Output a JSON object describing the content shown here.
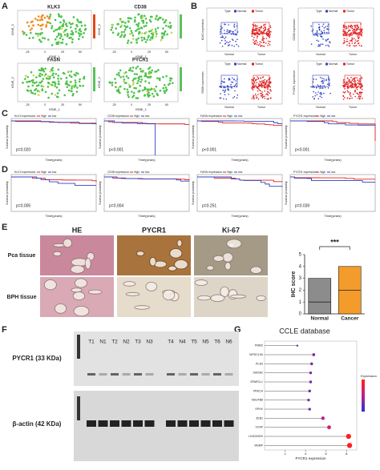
{
  "panels": {
    "letters": [
      "A",
      "B",
      "C",
      "D",
      "E",
      "F",
      "G"
    ],
    "a": {
      "genes": [
        "KLK3",
        "CD38",
        "FASN",
        "PYCR1"
      ],
      "x_label": "tSNE_1",
      "y_label": "tSNE_2",
      "ticks": [
        "-25",
        "0",
        "25",
        "50"
      ]
    },
    "b": {
      "legend_title": "Type",
      "groups": [
        "Normal",
        "Tumor"
      ],
      "y_labels": [
        "KLK3 expression",
        "CD38 expression",
        "FASN expression",
        "PYCR1 expression"
      ]
    },
    "c": {
      "legends": [
        "KLK3 expression",
        "CD38 expression",
        "FASN expression",
        "PYCR1 expression"
      ],
      "strata": [
        "High",
        "low"
      ],
      "x_label": "Time(years)",
      "y_label": "Survival probability",
      "p_values": [
        "p=0.020",
        "p<0.001",
        "p<0.001",
        "p<0.001"
      ]
    },
    "d": {
      "legends": [
        "KLK3 expression",
        "CD38 expression",
        "FASN expression",
        "PYCR1 expression"
      ],
      "strata": [
        "High",
        "low"
      ],
      "x_label": "Time(years)",
      "y_label": "Survival probability",
      "p_values": [
        "p=0.005",
        "p=0.004",
        "p=0.251",
        "p=0.039"
      ]
    },
    "e": {
      "columns": [
        "HE",
        "PYCR1",
        "Ki-67"
      ],
      "rows": [
        "Pca tissue",
        "BPH tissue"
      ]
    },
    "f": {
      "lanes": [
        "T1",
        "N1",
        "T2",
        "N2",
        "T3",
        "N3",
        "T4",
        "N4",
        "T5",
        "N5",
        "T6",
        "N6"
      ],
      "bands": [
        "PYCR1 (33 KDa)",
        "β-actin (42 KDa)"
      ]
    }
  },
  "chart_data": [
    {
      "type": "box",
      "ylabel": "IHC score",
      "categories": [
        "Normal",
        "Cancer"
      ],
      "low": [
        0,
        0
      ],
      "median": [
        1,
        2
      ],
      "high": [
        3,
        4
      ],
      "colors": [
        "#8c8c8c",
        "#f39c2b"
      ],
      "annotation": "***",
      "ylim": [
        0,
        5
      ],
      "yticks": [
        0,
        1,
        2,
        3,
        4,
        5
      ]
    },
    {
      "type": "lollipop",
      "title": "CCLE database",
      "xlabel": "PYCR1 expression",
      "legend_title": "Expression",
      "categories": [
        "PMM2",
        "WFDC10A",
        "PCA3",
        "SHISA2",
        "SPARCL1",
        "PRKCA",
        "NDUFB8",
        "EPHX",
        "ZEB1",
        "VCAP",
        "LINC00920",
        "MSMP"
      ],
      "values": [
        3.2,
        4.8,
        4.6,
        4.5,
        4.5,
        4.4,
        4.3,
        4.4,
        5.7,
        6.3,
        8.2,
        8.3
      ],
      "colormap": [
        "#3030d0",
        "#c0208a",
        "#ff2020"
      ],
      "xlim": [
        0,
        9
      ],
      "xticks": [
        2,
        4,
        6,
        8
      ]
    }
  ]
}
